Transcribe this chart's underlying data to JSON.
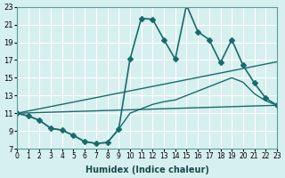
{
  "xlabel": "Humidex (Indice chaleur)",
  "xlim": [
    0,
    23
  ],
  "ylim": [
    7,
    23
  ],
  "yticks": [
    7,
    9,
    11,
    13,
    15,
    17,
    19,
    21,
    23
  ],
  "xticks": [
    0,
    1,
    2,
    3,
    4,
    5,
    6,
    7,
    8,
    9,
    10,
    11,
    12,
    13,
    14,
    15,
    16,
    17,
    18,
    19,
    20,
    21,
    22,
    23
  ],
  "bg_color": "#d6efef",
  "grid_color": "#ffffff",
  "line_color": "#1a6b6b",
  "lines": [
    {
      "x": [
        0,
        1,
        2,
        3,
        4,
        5,
        6,
        7,
        8,
        9,
        10,
        11,
        12,
        13,
        14,
        15,
        16,
        17,
        18,
        19,
        20,
        21,
        22,
        23
      ],
      "y": [
        11,
        10.7,
        10.2,
        9.3,
        9.1,
        8.5,
        7.8,
        7.6,
        7.7,
        9.2,
        17.1,
        21.7,
        21.6,
        19.3,
        17.1,
        23.2,
        20.2,
        19.3,
        16.7,
        19.3,
        16.4,
        14.4,
        12.7,
        11.9
      ],
      "marker": "D",
      "markersize": 3,
      "linewidth": 1.2
    },
    {
      "x": [
        0,
        1,
        2,
        3,
        4,
        5,
        6,
        7,
        8,
        9,
        10,
        11,
        12,
        13,
        14,
        15,
        16,
        17,
        18,
        19,
        20,
        21,
        22,
        23
      ],
      "y": [
        11,
        10.7,
        10.2,
        9.3,
        9.1,
        8.5,
        7.8,
        7.6,
        7.7,
        9.2,
        11.0,
        11.5,
        12.0,
        12.3,
        12.5,
        13.0,
        13.5,
        14.0,
        14.5,
        15.0,
        14.5,
        13.2,
        12.4,
        11.9
      ],
      "marker": null,
      "markersize": 0,
      "linewidth": 1.0
    },
    {
      "x": [
        0,
        23
      ],
      "y": [
        11,
        16.8
      ],
      "marker": null,
      "markersize": 0,
      "linewidth": 1.0
    },
    {
      "x": [
        0,
        23
      ],
      "y": [
        11,
        11.9
      ],
      "marker": null,
      "markersize": 0,
      "linewidth": 1.0
    }
  ]
}
